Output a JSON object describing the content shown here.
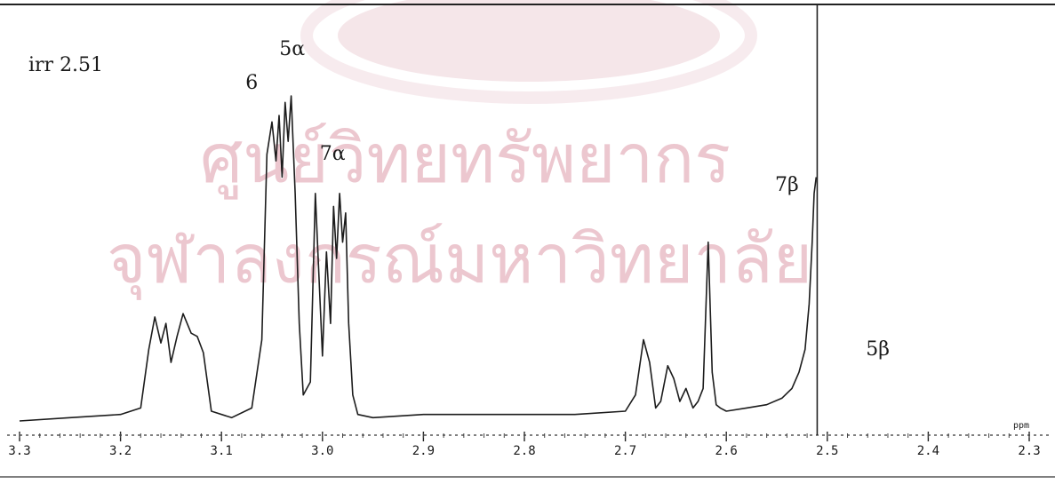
{
  "chart_data": {
    "type": "line",
    "title": "irr 2.51",
    "xlabel": "ppm",
    "ylabel": "",
    "x_reversed": true,
    "xlim": [
      3.3,
      2.3
    ],
    "ylim": [
      0,
      1
    ],
    "grid": false,
    "x_ticks": [
      3.3,
      3.2,
      3.1,
      3.0,
      2.9,
      2.8,
      2.7,
      2.6,
      2.5,
      2.4,
      2.3
    ],
    "x_tick_labels": [
      "3.3",
      "3.2",
      "3.1",
      "3.0",
      "2.9",
      "2.8",
      "2.7",
      "2.6",
      "2.5",
      "2.4",
      "2.3"
    ],
    "irradiated_position": 2.51,
    "peak_labels": [
      {
        "label": "6",
        "x": 3.07
      },
      {
        "label": "5α",
        "x": 3.03
      },
      {
        "label": "7α",
        "x": 2.99
      },
      {
        "label": "7β",
        "x": 2.54
      },
      {
        "label": "5β",
        "x": 2.45
      }
    ],
    "series": [
      {
        "x": [
          3.3,
          3.25,
          3.2,
          3.18,
          3.172,
          3.166,
          3.16,
          3.155,
          3.15,
          3.144,
          3.138,
          3.13,
          3.124,
          3.118,
          3.11,
          3.09,
          3.07,
          3.06,
          3.055,
          3.05,
          3.046,
          3.043,
          3.04,
          3.037,
          3.034,
          3.031,
          3.027,
          3.023,
          3.019,
          3.012,
          3.007,
          3.004,
          3.0,
          2.996,
          2.992,
          2.989,
          2.986,
          2.983,
          2.98,
          2.977,
          2.974,
          2.97,
          2.965,
          2.95,
          2.9,
          2.85,
          2.8,
          2.75,
          2.7,
          2.69,
          2.682,
          2.676,
          2.67,
          2.665,
          2.658,
          2.652,
          2.646,
          2.64,
          2.633,
          2.628,
          2.623,
          2.618,
          2.614,
          2.61,
          2.606,
          2.6,
          2.58,
          2.56,
          2.545,
          2.535,
          2.528,
          2.522,
          2.518,
          2.515,
          2.513,
          2.511
        ],
        "y": [
          0.0,
          0.01,
          0.02,
          0.04,
          0.22,
          0.32,
          0.24,
          0.3,
          0.18,
          0.26,
          0.33,
          0.27,
          0.26,
          0.21,
          0.03,
          0.01,
          0.04,
          0.25,
          0.82,
          0.92,
          0.8,
          0.94,
          0.75,
          0.98,
          0.86,
          1.0,
          0.7,
          0.3,
          0.08,
          0.12,
          0.7,
          0.48,
          0.2,
          0.52,
          0.3,
          0.66,
          0.5,
          0.7,
          0.55,
          0.64,
          0.3,
          0.08,
          0.02,
          0.01,
          0.02,
          0.02,
          0.02,
          0.02,
          0.03,
          0.08,
          0.25,
          0.18,
          0.04,
          0.06,
          0.17,
          0.13,
          0.06,
          0.1,
          0.04,
          0.06,
          0.1,
          0.55,
          0.15,
          0.05,
          0.04,
          0.03,
          0.04,
          0.05,
          0.07,
          0.1,
          0.15,
          0.22,
          0.36,
          0.55,
          0.7,
          0.75
        ]
      }
    ]
  }
}
